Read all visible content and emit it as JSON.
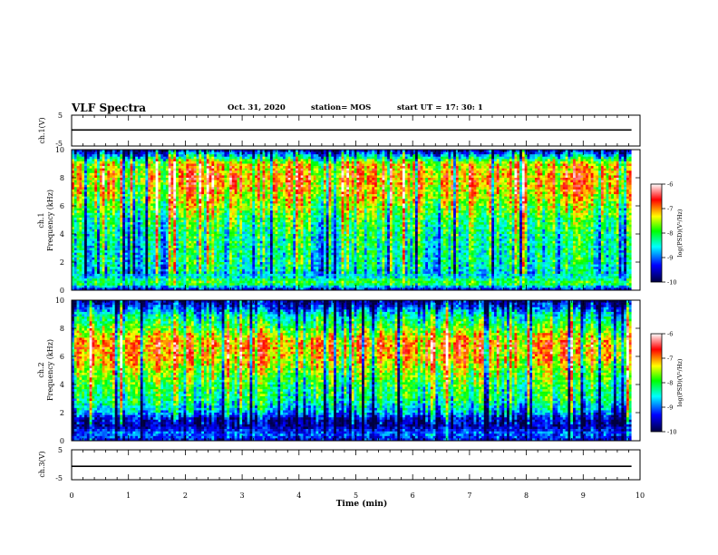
{
  "header": {
    "title": "VLF Spectra",
    "date": "Oct. 31, 2020",
    "station": "station= MOS",
    "start_label": "start  UT =",
    "start_time": "17: 30: 1"
  },
  "xaxis": {
    "label": "Time (min)",
    "ticks": [
      "0",
      "1",
      "2",
      "3",
      "4",
      "5",
      "6",
      "7",
      "8",
      "9",
      "10"
    ],
    "range": [
      0,
      10
    ]
  },
  "panels": {
    "ch1_voltage": {
      "ylabel": "ch.1(V)",
      "ticks": [
        "5",
        "-5"
      ],
      "range": [
        -5,
        5
      ],
      "level": 0.2
    },
    "ch1_spectrogram": {
      "ylabel_1": "ch.1",
      "ylabel_2": "Frequency (kHz)",
      "ticks": [
        "0",
        "2",
        "4",
        "6",
        "8",
        "10"
      ],
      "range": [
        0,
        10
      ]
    },
    "ch2_spectrogram": {
      "ylabel_1": "ch.2",
      "ylabel_2": "Frequency (kHz)",
      "ticks": [
        "0",
        "2",
        "4",
        "6",
        "8",
        "10"
      ],
      "range": [
        0,
        10
      ]
    },
    "ch3_voltage": {
      "ylabel": "ch.3(V)",
      "ticks": [
        "5",
        "-5"
      ],
      "range": [
        -5,
        5
      ],
      "level": -0.5
    }
  },
  "colorbar": {
    "label": "log(PSD)(V²/Hz)",
    "ticks": [
      "-6",
      "-7",
      "-8",
      "-9",
      "-10"
    ],
    "range": [
      -10,
      -6
    ],
    "colors": [
      "#000040",
      "#0000ff",
      "#00ffff",
      "#00ff00",
      "#ffff00",
      "#ff0000",
      "#ffffff"
    ]
  },
  "chart_data": [
    {
      "type": "line",
      "title": "VLF Spectra",
      "ylabel": "ch.1(V)",
      "xlabel": "Time (min)",
      "xlim": [
        0,
        10
      ],
      "ylim": [
        -5,
        5
      ],
      "series": [
        {
          "x": [
            0,
            9.85
          ],
          "values": [
            0.2,
            0.2
          ]
        }
      ]
    },
    {
      "type": "heatmap",
      "ylabel": "ch.1 Frequency (kHz)",
      "xlabel": "Time (min)",
      "xlim": [
        0,
        9.85
      ],
      "ylim": [
        0,
        10
      ],
      "zlabel": "log(PSD)(V²/Hz)",
      "zlim": [
        -10,
        -6
      ],
      "profile_freq_khz": [
        0,
        0.5,
        1,
        2,
        3,
        4,
        5,
        6,
        7,
        8,
        9,
        9.5,
        10
      ],
      "profile_log_psd": [
        -9.5,
        -7.8,
        -8.6,
        -8.3,
        -8.3,
        -8.2,
        -8.0,
        -7.6,
        -7.2,
        -7.0,
        -7.3,
        -8.5,
        -9.7
      ]
    },
    {
      "type": "heatmap",
      "ylabel": "ch.2 Frequency (kHz)",
      "xlabel": "Time (min)",
      "xlim": [
        0,
        9.85
      ],
      "ylim": [
        0,
        10
      ],
      "zlabel": "log(PSD)(V²/Hz)",
      "zlim": [
        -10,
        -6
      ],
      "profile_freq_khz": [
        0,
        0.5,
        1,
        1.5,
        2,
        3,
        4,
        5,
        6,
        7,
        8,
        9,
        9.5,
        10
      ],
      "profile_log_psd": [
        -9.4,
        -9.0,
        -9.6,
        -9.6,
        -8.8,
        -8.2,
        -8.0,
        -7.6,
        -7.1,
        -7.0,
        -7.8,
        -8.5,
        -9.2,
        -9.8
      ]
    },
    {
      "type": "line",
      "ylabel": "ch.3(V)",
      "xlabel": "Time (min)",
      "xlim": [
        0,
        10
      ],
      "ylim": [
        -5,
        5
      ],
      "series": [
        {
          "x": [
            0,
            9.85
          ],
          "values": [
            -0.5,
            -0.5
          ]
        }
      ]
    }
  ]
}
